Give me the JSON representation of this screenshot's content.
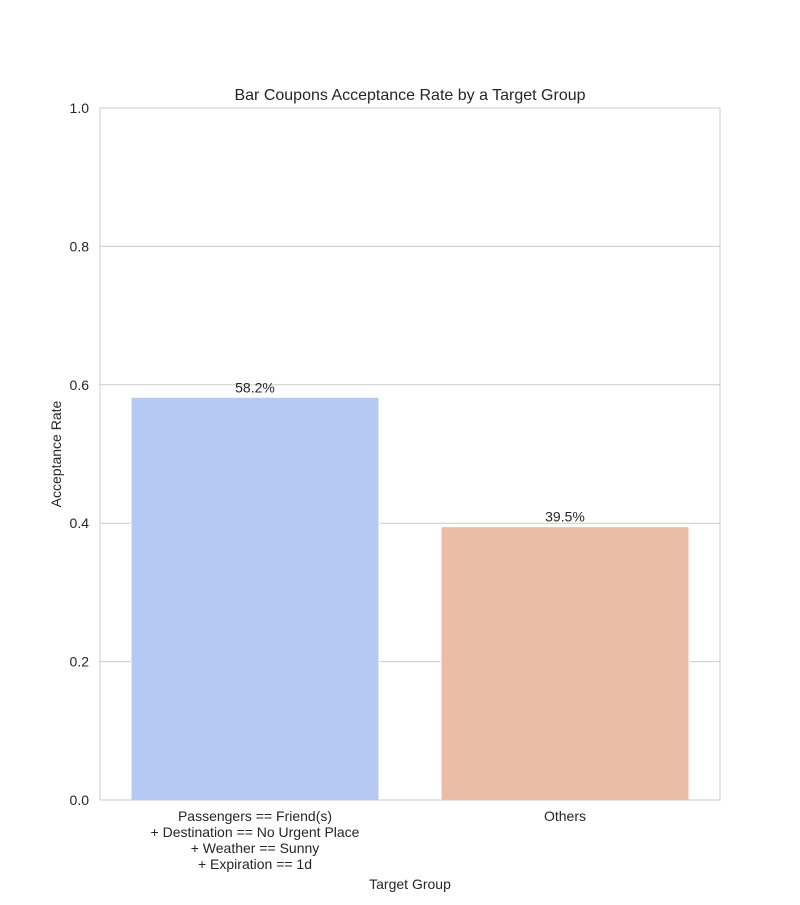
{
  "chart_data": {
    "type": "bar",
    "title": "Bar Coupons Acceptance Rate by a Target Group",
    "xlabel": "Target Group",
    "ylabel": "Acceptance Rate",
    "categories": [
      "Passengers == Friend(s)\n+ Destination == No Urgent Place\n+ Weather == Sunny\n+ Expiration == 1d",
      "Others"
    ],
    "values": [
      0.582,
      0.395
    ],
    "value_labels": [
      "58.2%",
      "39.5%"
    ],
    "colors": [
      "#b5c9f2",
      "#ebbca6"
    ],
    "ylim": [
      0,
      1.0
    ],
    "yticks": [
      0.0,
      0.2,
      0.4,
      0.6,
      0.8,
      1.0
    ],
    "ytick_labels": [
      "0.0",
      "0.2",
      "0.4",
      "0.6",
      "0.8",
      "1.0"
    ],
    "grid": true,
    "legend": false
  }
}
